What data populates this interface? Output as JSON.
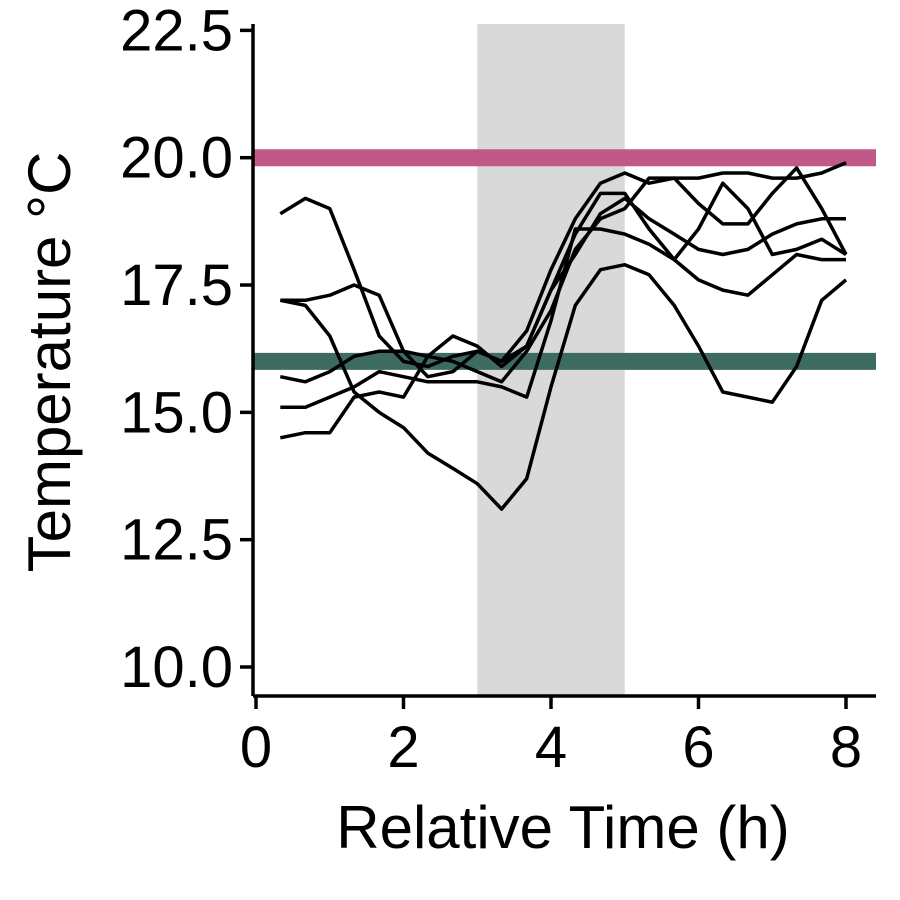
{
  "chart_data": {
    "type": "line",
    "xlabel": "Relative Time (h)",
    "ylabel": "Temperature °C",
    "xlim": [
      0,
      8.4
    ],
    "ylim": [
      9.5,
      22.6
    ],
    "x_ticks": [
      0,
      2,
      4,
      6,
      8
    ],
    "x_tick_labels": [
      "0",
      "2",
      "4",
      "6",
      "8"
    ],
    "y_ticks": [
      10.0,
      12.5,
      15.0,
      17.5,
      20.0,
      22.5
    ],
    "y_tick_labels": [
      "10.0",
      "12.5",
      "15.0",
      "17.5",
      "20.0",
      "22.5"
    ],
    "grid": false,
    "legend": "none",
    "shaded_region": {
      "x_start": 3.0,
      "x_end": 5.0,
      "color": "#d9d9d9"
    },
    "reference_lines": [
      {
        "y": 20.0,
        "color": "#c05888"
      },
      {
        "y": 16.0,
        "color": "#3d6b62"
      }
    ],
    "line_color": "#000000",
    "x": [
      0.33,
      0.67,
      1.0,
      1.33,
      1.67,
      2.0,
      2.33,
      2.67,
      3.0,
      3.33,
      3.67,
      4.0,
      4.33,
      4.67,
      5.0,
      5.33,
      5.67,
      6.0,
      6.33,
      6.67,
      7.0,
      7.33,
      7.67,
      8.0
    ],
    "series": [
      {
        "values": [
          18.9,
          19.2,
          19.0,
          17.8,
          16.5,
          16.0,
          15.9,
          16.1,
          16.2,
          16.0,
          16.6,
          17.8,
          18.8,
          19.5,
          19.7,
          19.5,
          19.6,
          19.6,
          19.7,
          19.7,
          19.6,
          19.6,
          19.7,
          19.9
        ]
      },
      {
        "values": [
          17.2,
          17.2,
          17.3,
          17.5,
          17.3,
          16.2,
          15.7,
          15.8,
          16.2,
          16.0,
          16.3,
          17.4,
          18.5,
          19.3,
          19.3,
          18.6,
          18.0,
          18.6,
          19.5,
          19.0,
          18.1,
          18.2,
          18.4,
          18.1
        ]
      },
      {
        "values": [
          17.2,
          17.1,
          16.5,
          15.4,
          15.0,
          14.7,
          14.2,
          13.9,
          13.6,
          13.1,
          13.7,
          15.5,
          17.1,
          17.8,
          17.9,
          17.7,
          17.1,
          16.3,
          15.4,
          15.3,
          15.2,
          15.9,
          17.2,
          17.6
        ]
      },
      {
        "values": [
          15.7,
          15.6,
          15.8,
          16.1,
          16.2,
          16.2,
          16.1,
          16.0,
          15.8,
          15.6,
          16.2,
          17.0,
          18.2,
          18.8,
          19.0,
          19.6,
          19.6,
          19.1,
          18.7,
          18.7,
          19.3,
          19.8,
          19.0,
          18.1
        ]
      },
      {
        "values": [
          15.1,
          15.1,
          15.3,
          15.5,
          15.8,
          15.7,
          15.6,
          15.6,
          15.6,
          15.5,
          15.3,
          16.8,
          18.6,
          18.6,
          18.5,
          18.3,
          18.0,
          17.6,
          17.4,
          17.3,
          17.7,
          18.1,
          18.0,
          18.0
        ]
      },
      {
        "values": [
          14.5,
          14.6,
          14.6,
          15.3,
          15.4,
          15.3,
          16.1,
          16.5,
          16.3,
          15.9,
          16.3,
          17.4,
          18.1,
          18.9,
          19.2,
          18.8,
          18.5,
          18.2,
          18.1,
          18.2,
          18.5,
          18.7,
          18.8,
          18.8
        ]
      }
    ]
  }
}
